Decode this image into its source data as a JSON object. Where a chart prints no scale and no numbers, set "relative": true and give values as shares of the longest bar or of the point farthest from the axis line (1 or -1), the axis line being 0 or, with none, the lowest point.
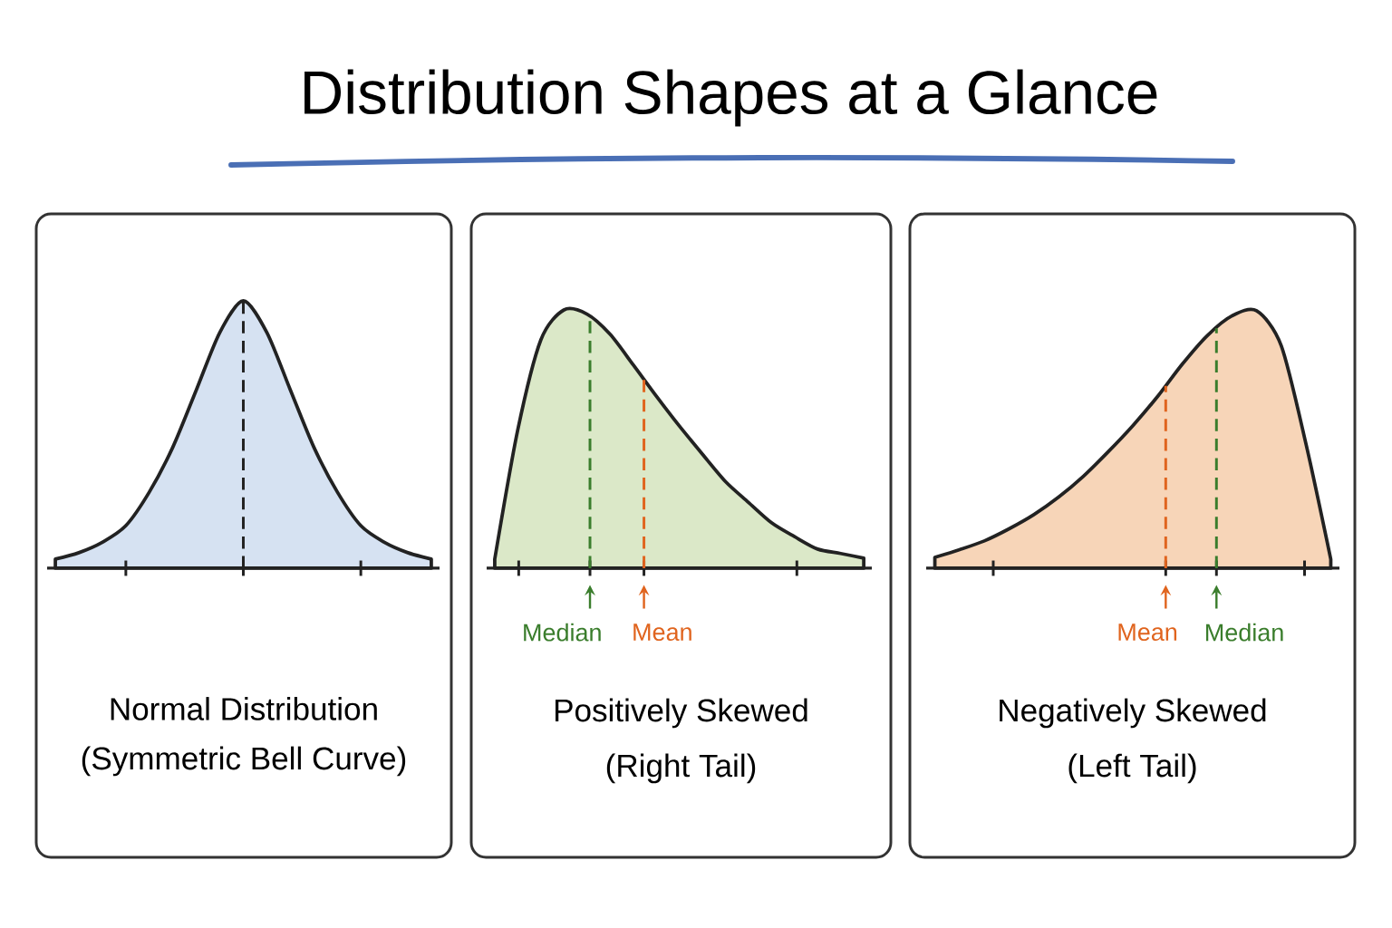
{
  "chart_data": [
    {
      "type": "other",
      "title": "Distribution Shapes at a Glance"
    },
    {
      "type": "area",
      "relative": true,
      "title": "Normal Distribution",
      "subtitle": "(Symmetric Bell Curve)",
      "color": "#d6e2f2",
      "categories": [
        null,
        null,
        null,
        null,
        null,
        null,
        null,
        null,
        null,
        null,
        null,
        null,
        null,
        null,
        null,
        null,
        null
      ],
      "values": [
        0.034,
        0.058,
        0.097,
        0.159,
        0.285,
        0.453,
        0.667,
        0.882,
        1,
        0.882,
        0.667,
        0.453,
        0.285,
        0.159,
        0.097,
        0.058,
        0.034
      ]
    },
    {
      "type": "area",
      "relative": true,
      "title": "Positively Skewed",
      "subtitle": "(Right Tail)",
      "color": "#dbe8c8",
      "categories": [
        null,
        null,
        null,
        null,
        null,
        null,
        null,
        null,
        null,
        null,
        null,
        null,
        null,
        null,
        null,
        null,
        null
      ],
      "values": [
        0.035,
        0.536,
        0.884,
        1,
        0.984,
        0.906,
        0.788,
        0.667,
        0.551,
        0.442,
        0.336,
        0.255,
        0.176,
        0.122,
        0.074,
        0.057,
        0.039
      ],
      "annotations": [
        "Median",
        "Mean"
      ]
    },
    {
      "type": "area",
      "relative": true,
      "title": "Negatively Skewed",
      "subtitle": "(Left Tail)",
      "color": "#f7d5b8",
      "categories": [
        null,
        null,
        null,
        null,
        null,
        null,
        null,
        null,
        null,
        null,
        null,
        null,
        null,
        null,
        null,
        null,
        null
      ],
      "values": [
        0.042,
        0.072,
        0.106,
        0.153,
        0.208,
        0.276,
        0.357,
        0.452,
        0.554,
        0.667,
        0.793,
        0.903,
        0.98,
        1,
        0.864,
        0.482,
        0.035
      ],
      "annotations": [
        "Mean",
        "Median"
      ]
    }
  ]
}
